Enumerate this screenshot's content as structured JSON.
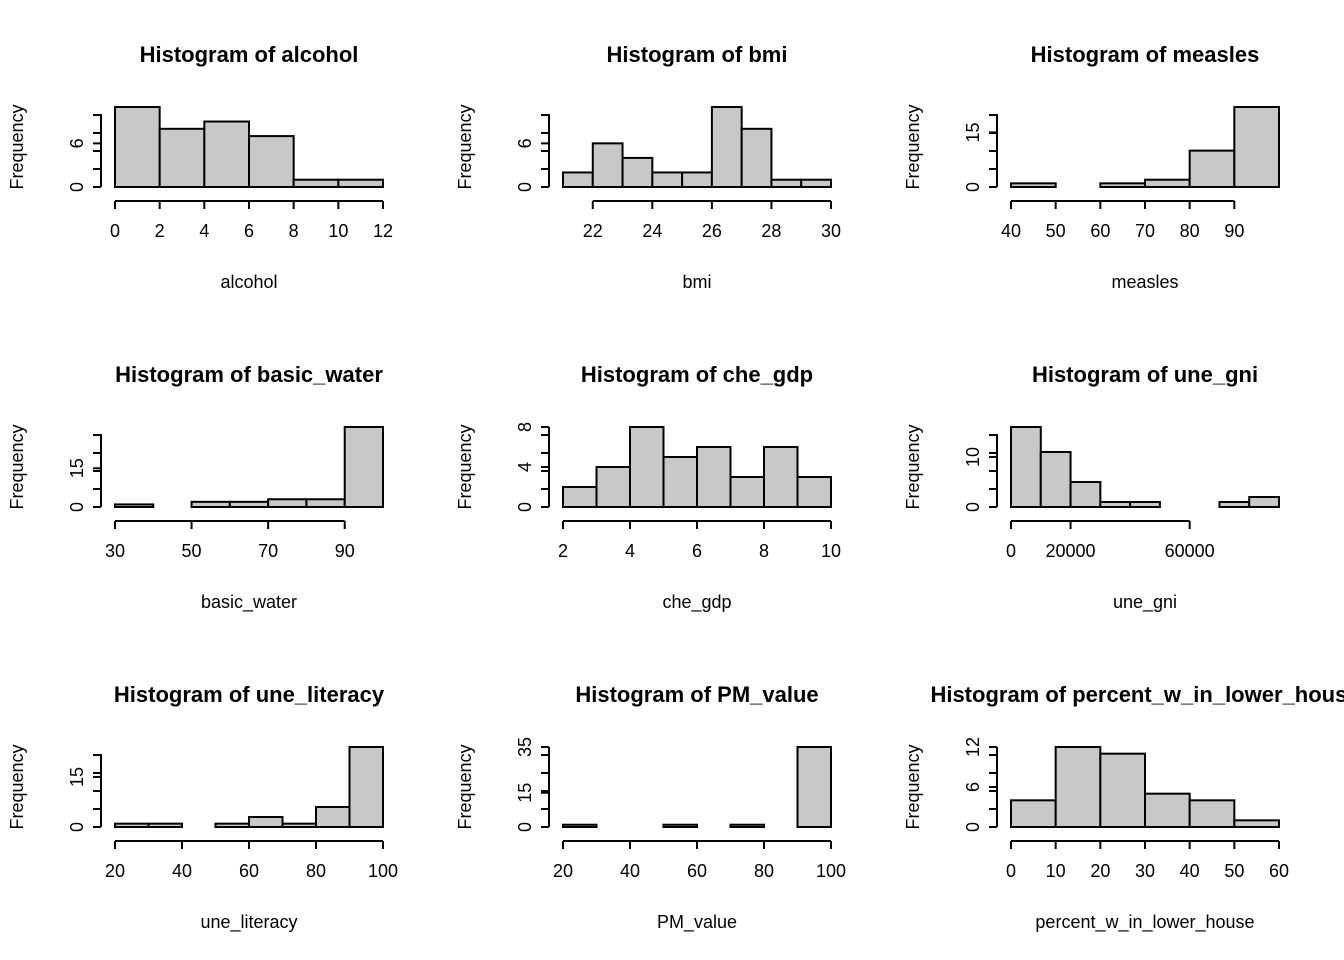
{
  "ylabel": "Frequency",
  "colors": {
    "bar_fill": "#c8c8c8",
    "stroke": "#000000",
    "background": "#ffffff"
  },
  "chart_data": [
    {
      "type": "bar",
      "title": "Histogram of alcohol",
      "xlabel": "alcohol",
      "ylabel": "Frequency",
      "breaks": [
        0,
        2,
        4,
        6,
        8,
        10,
        12
      ],
      "values": [
        11,
        8,
        9,
        7,
        1,
        1
      ],
      "xlim": [
        0,
        12
      ],
      "ylim": [
        0,
        11
      ],
      "xticks": [
        0,
        2,
        4,
        6,
        8,
        10,
        12
      ],
      "yticks": [
        0,
        6
      ]
    },
    {
      "type": "bar",
      "title": "Histogram of bmi",
      "xlabel": "bmi",
      "ylabel": "Frequency",
      "breaks": [
        21,
        22,
        23,
        24,
        25,
        26,
        27,
        28,
        29,
        30
      ],
      "values": [
        2,
        6,
        4,
        2,
        2,
        11,
        8,
        1,
        1
      ],
      "xlim": [
        21,
        30
      ],
      "ylim": [
        0,
        11
      ],
      "xticks": [
        22,
        24,
        26,
        28,
        30
      ],
      "yticks": [
        0,
        6
      ]
    },
    {
      "type": "bar",
      "title": "Histogram of measles",
      "xlabel": "measles",
      "ylabel": "Frequency",
      "breaks": [
        40,
        50,
        60,
        70,
        80,
        90,
        100
      ],
      "values": [
        1,
        0,
        1,
        2,
        10,
        22
      ],
      "xlim": [
        40,
        100
      ],
      "ylim": [
        0,
        22
      ],
      "xticks": [
        40,
        50,
        60,
        70,
        80,
        90
      ],
      "yticks": [
        0,
        15
      ]
    },
    {
      "type": "bar",
      "title": "Histogram of basic_water",
      "xlabel": "basic_water",
      "ylabel": "Frequency",
      "breaks": [
        30,
        40,
        50,
        60,
        70,
        80,
        90,
        100
      ],
      "values": [
        1,
        0,
        2,
        2,
        3,
        3,
        31
      ],
      "xlim": [
        30,
        100
      ],
      "ylim": [
        0,
        31
      ],
      "xticks": [
        30,
        50,
        70,
        90
      ],
      "yticks": [
        0,
        15
      ]
    },
    {
      "type": "bar",
      "title": "Histogram of che_gdp",
      "xlabel": "che_gdp",
      "ylabel": "Frequency",
      "breaks": [
        2,
        3,
        4,
        5,
        6,
        7,
        8,
        9,
        10
      ],
      "values": [
        2,
        4,
        8,
        5,
        6,
        3,
        6,
        3
      ],
      "xlim": [
        2,
        10
      ],
      "ylim": [
        0,
        8
      ],
      "xticks": [
        2,
        4,
        6,
        8,
        10
      ],
      "yticks": [
        0,
        4,
        8
      ]
    },
    {
      "type": "bar",
      "title": "Histogram of une_gni",
      "xlabel": "une_gni",
      "ylabel": "Frequency",
      "breaks": [
        0,
        10000,
        20000,
        30000,
        40000,
        50000,
        60000,
        70000,
        80000,
        90000
      ],
      "values": [
        16,
        11,
        5,
        1,
        1,
        0,
        0,
        1,
        2
      ],
      "xlim": [
        0,
        90000
      ],
      "ylim": [
        0,
        16
      ],
      "xticks": [
        0,
        20000,
        60000
      ],
      "yticks": [
        0,
        10
      ]
    },
    {
      "type": "bar",
      "title": "Histogram of une_literacy",
      "xlabel": "une_literacy",
      "ylabel": "Frequency",
      "breaks": [
        20,
        30,
        40,
        50,
        60,
        70,
        80,
        90,
        100
      ],
      "values": [
        1,
        1,
        0,
        1,
        3,
        1,
        6,
        24
      ],
      "xlim": [
        20,
        100
      ],
      "ylim": [
        0,
        24
      ],
      "xticks": [
        20,
        40,
        60,
        80,
        100
      ],
      "yticks": [
        0,
        15
      ]
    },
    {
      "type": "bar",
      "title": "Histogram of PM_value",
      "xlabel": "PM_value",
      "ylabel": "Frequency",
      "breaks": [
        20,
        30,
        40,
        50,
        60,
        70,
        80,
        90,
        100
      ],
      "values": [
        1,
        0,
        0,
        1,
        0,
        1,
        0,
        35
      ],
      "xlim": [
        20,
        100
      ],
      "ylim": [
        0,
        35
      ],
      "xticks": [
        20,
        40,
        60,
        80,
        100
      ],
      "yticks": [
        0,
        15,
        35
      ]
    },
    {
      "type": "bar",
      "title": "Histogram of percent_w_in_lower_house",
      "xlabel": "percent_w_in_lower_house",
      "ylabel": "Frequency",
      "breaks": [
        0,
        10,
        20,
        30,
        40,
        50,
        60
      ],
      "values": [
        4,
        12,
        11,
        5,
        4,
        1
      ],
      "xlim": [
        0,
        60
      ],
      "ylim": [
        0,
        12
      ],
      "xticks": [
        0,
        10,
        20,
        30,
        40,
        50,
        60
      ],
      "yticks": [
        0,
        6,
        12
      ]
    }
  ]
}
